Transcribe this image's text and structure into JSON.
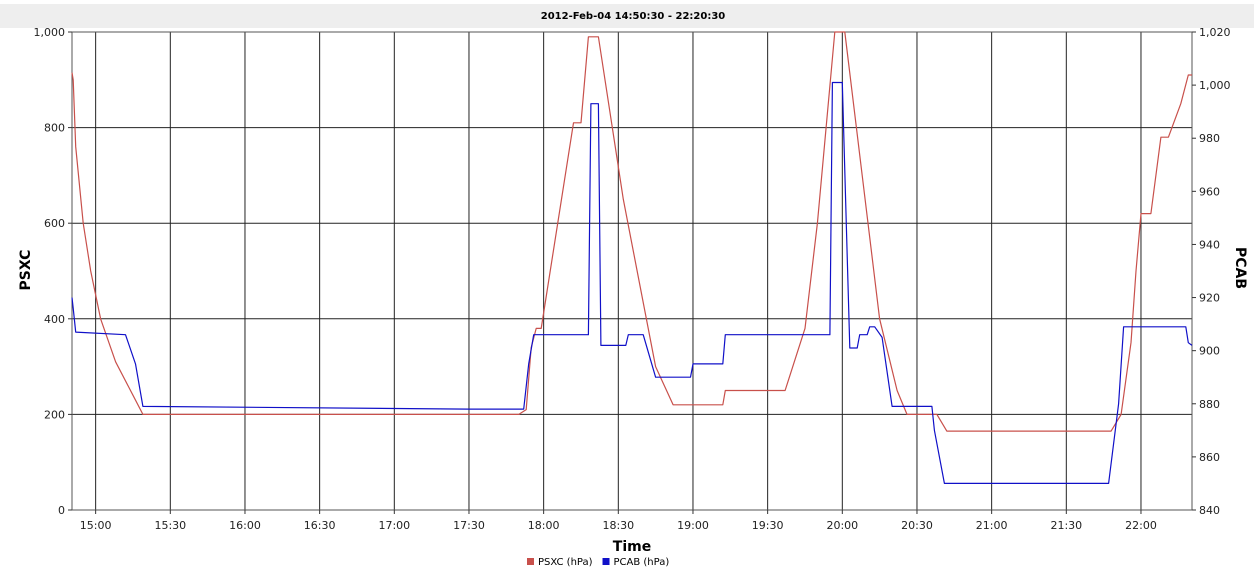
{
  "chart_data": {
    "type": "line",
    "title": "2012-Feb-04 14:50:30 - 22:20:30",
    "xlabel": "Time",
    "ylabel_left": "PSXC",
    "ylabel_right": "PCAB",
    "x_range": [
      "14:50:30",
      "22:20:30"
    ],
    "x_ticks": [
      "15:00",
      "15:30",
      "16:00",
      "16:30",
      "17:00",
      "17:30",
      "18:00",
      "18:30",
      "19:00",
      "19:30",
      "20:00",
      "20:30",
      "21:00",
      "21:30",
      "22:00"
    ],
    "y_left_range": [
      0,
      1000
    ],
    "y_left_ticks": [
      "0",
      "200",
      "400",
      "600",
      "800",
      "1,000"
    ],
    "y_right_range": [
      840,
      1020
    ],
    "y_right_ticks": [
      "840",
      "860",
      "880",
      "900",
      "920",
      "940",
      "960",
      "980",
      "1,000",
      "1,020"
    ],
    "grid": true,
    "legend_position": "bottom-center",
    "series": [
      {
        "name": "PSXC (hPa)",
        "axis": "left",
        "color": "#c8504b",
        "points": [
          [
            "14:50:30",
            915
          ],
          [
            "14:51:00",
            900
          ],
          [
            "14:52:00",
            760
          ],
          [
            "14:55:00",
            600
          ],
          [
            "14:58:00",
            500
          ],
          [
            "15:02:00",
            400
          ],
          [
            "15:08:00",
            310
          ],
          [
            "15:15:00",
            240
          ],
          [
            "15:19:00",
            200
          ],
          [
            "17:50:00",
            200
          ],
          [
            "17:53:00",
            210
          ],
          [
            "17:55:00",
            340
          ],
          [
            "17:57:00",
            380
          ],
          [
            "17:59:00",
            380
          ],
          [
            "18:12:00",
            810
          ],
          [
            "18:15:00",
            810
          ],
          [
            "18:18:00",
            990
          ],
          [
            "18:22:00",
            990
          ],
          [
            "18:32:00",
            650
          ],
          [
            "18:45:00",
            300
          ],
          [
            "18:52:00",
            220
          ],
          [
            "19:12:00",
            220
          ],
          [
            "19:13:00",
            250
          ],
          [
            "19:37:00",
            250
          ],
          [
            "19:45:00",
            380
          ],
          [
            "19:50:00",
            600
          ],
          [
            "19:57:00",
            1000
          ],
          [
            "20:01:00",
            1000
          ],
          [
            "20:08:00",
            700
          ],
          [
            "20:15:00",
            400
          ],
          [
            "20:22:00",
            250
          ],
          [
            "20:26:00",
            200
          ],
          [
            "20:38:00",
            200
          ],
          [
            "20:42:00",
            165
          ],
          [
            "21:48:00",
            165
          ],
          [
            "21:52:00",
            200
          ],
          [
            "21:56:00",
            350
          ],
          [
            "21:58:00",
            500
          ],
          [
            "22:00:00",
            620
          ],
          [
            "22:04:00",
            620
          ],
          [
            "22:08:00",
            780
          ],
          [
            "22:11:00",
            780
          ],
          [
            "22:16:00",
            850
          ],
          [
            "22:19:00",
            910
          ],
          [
            "22:20:30",
            910
          ]
        ]
      },
      {
        "name": "PCAB (hPa)",
        "axis": "right",
        "color": "#1010c8",
        "points": [
          [
            "14:50:30",
            920
          ],
          [
            "14:51:00",
            916
          ],
          [
            "14:52:00",
            907
          ],
          [
            "15:12:00",
            906
          ],
          [
            "15:16:00",
            895
          ],
          [
            "15:19:00",
            879
          ],
          [
            "17:30:00",
            878
          ],
          [
            "17:52:00",
            878
          ],
          [
            "17:54:00",
            895
          ],
          [
            "17:56:00",
            906
          ],
          [
            "18:18:00",
            906
          ],
          [
            "18:19:00",
            993
          ],
          [
            "18:22:00",
            993
          ],
          [
            "18:23:00",
            902
          ],
          [
            "18:33:00",
            902
          ],
          [
            "18:34:00",
            906
          ],
          [
            "18:40:00",
            906
          ],
          [
            "18:45:00",
            890
          ],
          [
            "18:59:00",
            890
          ],
          [
            "19:00:00",
            895
          ],
          [
            "19:12:00",
            895
          ],
          [
            "19:13:00",
            906
          ],
          [
            "19:55:00",
            906
          ],
          [
            "19:56:00",
            1001
          ],
          [
            "20:00:00",
            1001
          ],
          [
            "20:03:00",
            901
          ],
          [
            "20:06:00",
            901
          ],
          [
            "20:07:00",
            906
          ],
          [
            "20:10:00",
            906
          ],
          [
            "20:11:00",
            909
          ],
          [
            "20:13:00",
            909
          ],
          [
            "20:16:00",
            905
          ],
          [
            "20:20:00",
            879
          ],
          [
            "20:36:00",
            879
          ],
          [
            "20:37:00",
            870
          ],
          [
            "20:41:00",
            850
          ],
          [
            "21:47:00",
            850
          ],
          [
            "21:51:00",
            880
          ],
          [
            "21:53:00",
            909
          ],
          [
            "22:18:00",
            909
          ],
          [
            "22:19:00",
            903
          ],
          [
            "22:20:30",
            902
          ]
        ]
      }
    ]
  }
}
